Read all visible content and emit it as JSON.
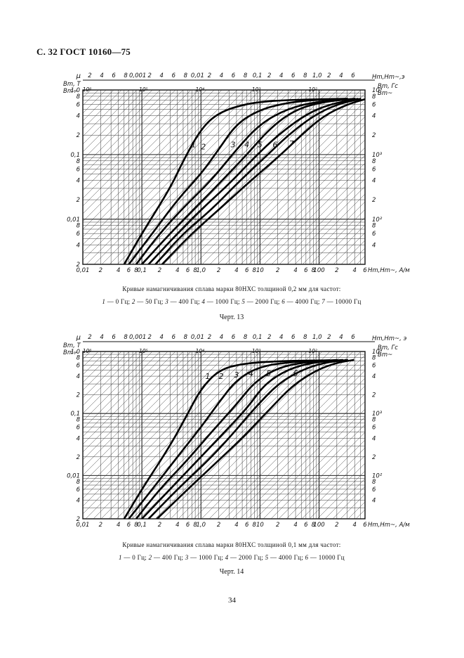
{
  "header": {
    "title": "С. 32 ГОСТ 10160—75"
  },
  "page_number": "34",
  "charts": [
    {
      "caption": "Кривые намагничивания сплава марки 80НХС толщиной 0,2 мм для частот:",
      "legend_items": [
        {
          "num": "1",
          "text": " — 0 Гц; "
        },
        {
          "num": "2",
          "text": " — 50 Гц; "
        },
        {
          "num": "3",
          "text": " — 400 Гц; "
        },
        {
          "num": "4",
          "text": " — 1000 Гц; "
        },
        {
          "num": "5",
          "text": " — 2000 Гц; "
        },
        {
          "num": "6",
          "text": " — 4000 Гц; "
        },
        {
          "num": "7",
          "text": " — 10000 Гц"
        }
      ],
      "label": "Черт. 13"
    },
    {
      "caption": "Кривые намагничивания сплава марки 80НХС толщиной 0,1 мм для частот:",
      "legend_items": [
        {
          "num": "1",
          "text": " — 0 Гц; "
        },
        {
          "num": "2",
          "text": " — 400 Гц; "
        },
        {
          "num": "3",
          "text": " — 1000 Гц; "
        },
        {
          "num": "4",
          "text": " — 2000 Гц; "
        },
        {
          "num": "5",
          "text": " — 4000 Гц; "
        },
        {
          "num": "6",
          "text": " — 10000 Гц"
        }
      ],
      "label": "Черт. 14"
    }
  ],
  "chart_data": [
    {
      "type": "line",
      "x_scale": "log",
      "y_scale": "log",
      "xlim": [
        0.01,
        600
      ],
      "ylim": [
        0.002,
        1.0
      ],
      "top_axis_label": "Hm,Hm~,э",
      "top_axis_marks": [
        "2",
        "4",
        "6",
        "8",
        "0,001",
        "2",
        "4",
        "6",
        "8",
        "0,01",
        "2",
        "4",
        "6",
        "8",
        "0,1",
        "2",
        "4",
        "6",
        "8",
        "1,0",
        "2",
        "4",
        "6"
      ],
      "bottom_axis_label": "Hm,Hm~, А/м",
      "x_ticks": [
        {
          "v": 0.01,
          "t": "0,01"
        },
        {
          "v": 0.02,
          "t": "2"
        },
        {
          "v": 0.04,
          "t": "4"
        },
        {
          "v": 0.06,
          "t": "6"
        },
        {
          "v": 0.08,
          "t": "8"
        },
        {
          "v": 0.1,
          "t": "0,1"
        },
        {
          "v": 0.2,
          "t": "2"
        },
        {
          "v": 0.4,
          "t": "4"
        },
        {
          "v": 0.6,
          "t": "6"
        },
        {
          "v": 0.8,
          "t": "8"
        },
        {
          "v": 1,
          "t": "1,0"
        },
        {
          "v": 2,
          "t": "2"
        },
        {
          "v": 4,
          "t": "4"
        },
        {
          "v": 6,
          "t": "6"
        },
        {
          "v": 8,
          "t": "8"
        },
        {
          "v": 10,
          "t": "10"
        },
        {
          "v": 20,
          "t": "2"
        },
        {
          "v": 40,
          "t": "4"
        },
        {
          "v": 60,
          "t": "6"
        },
        {
          "v": 80,
          "t": "8"
        },
        {
          "v": 100,
          "t": "100"
        },
        {
          "v": 200,
          "t": "2"
        },
        {
          "v": 400,
          "t": "4"
        },
        {
          "v": 600,
          "t": "6"
        }
      ],
      "left_axis_label": [
        "Bm, T",
        "Bm~"
      ],
      "y_ticks": [
        {
          "v": 1,
          "t": "1,0"
        },
        {
          "v": 0.8,
          "t": "8"
        },
        {
          "v": 0.6,
          "t": "6"
        },
        {
          "v": 0.4,
          "t": "4"
        },
        {
          "v": 0.2,
          "t": "2"
        },
        {
          "v": 0.1,
          "t": "0,1"
        },
        {
          "v": 0.08,
          "t": "8"
        },
        {
          "v": 0.06,
          "t": "6"
        },
        {
          "v": 0.04,
          "t": "4"
        },
        {
          "v": 0.02,
          "t": "2"
        },
        {
          "v": 0.01,
          "t": "0,01"
        },
        {
          "v": 0.008,
          "t": "8"
        },
        {
          "v": 0.006,
          "t": "6"
        },
        {
          "v": 0.004,
          "t": "4"
        },
        {
          "v": 0.002,
          "t": "2"
        }
      ],
      "right_axis_label": [
        "Bm, Гс",
        "Bm~"
      ],
      "right_ticks": [
        {
          "v": 1,
          "t": "10⁴"
        },
        {
          "v": 0.8,
          "t": "8"
        },
        {
          "v": 0.6,
          "t": "6"
        },
        {
          "v": 0.4,
          "t": "4"
        },
        {
          "v": 0.2,
          "t": "2"
        },
        {
          "v": 0.1,
          "t": "10³"
        },
        {
          "v": 0.08,
          "t": "8"
        },
        {
          "v": 0.06,
          "t": "6"
        },
        {
          "v": 0.04,
          "t": "4"
        },
        {
          "v": 0.02,
          "t": "2"
        },
        {
          "v": 0.01,
          "t": "10²"
        },
        {
          "v": 0.008,
          "t": "8"
        },
        {
          "v": 0.006,
          "t": "6"
        },
        {
          "v": 0.004,
          "t": "4"
        }
      ],
      "mu_label": "μ",
      "mu_values": [
        "10⁶",
        "10⁵",
        "10⁴",
        "10³",
        "10²"
      ],
      "series": [
        {
          "name": "1",
          "points": [
            [
              0.05,
              0.002
            ],
            [
              0.1,
              0.006
            ],
            [
              0.3,
              0.03
            ],
            [
              0.5,
              0.08
            ],
            [
              1,
              0.25
            ],
            [
              2,
              0.45
            ],
            [
              6,
              0.62
            ],
            [
              20,
              0.69
            ],
            [
              100,
              0.72
            ],
            [
              300,
              0.73
            ]
          ],
          "label_at": [
            0.75,
            0.13
          ]
        },
        {
          "name": "2",
          "points": [
            [
              0.06,
              0.002
            ],
            [
              0.15,
              0.006
            ],
            [
              0.4,
              0.02
            ],
            [
              1,
              0.05
            ],
            [
              2,
              0.12
            ],
            [
              4,
              0.3
            ],
            [
              10,
              0.5
            ],
            [
              30,
              0.64
            ],
            [
              100,
              0.71
            ],
            [
              300,
              0.73
            ]
          ],
          "label_at": [
            1.1,
            0.12
          ]
        },
        {
          "name": "3",
          "points": [
            [
              0.08,
              0.002
            ],
            [
              0.2,
              0.006
            ],
            [
              0.5,
              0.015
            ],
            [
              1.5,
              0.04
            ],
            [
              4,
              0.12
            ],
            [
              10,
              0.3
            ],
            [
              30,
              0.52
            ],
            [
              100,
              0.67
            ],
            [
              400,
              0.73
            ]
          ],
          "label_at": [
            3.5,
            0.13
          ]
        },
        {
          "name": "4",
          "points": [
            [
              0.1,
              0.002
            ],
            [
              0.3,
              0.006
            ],
            [
              0.8,
              0.015
            ],
            [
              2,
              0.035
            ],
            [
              6,
              0.1
            ],
            [
              15,
              0.26
            ],
            [
              40,
              0.5
            ],
            [
              120,
              0.66
            ],
            [
              400,
              0.73
            ]
          ],
          "label_at": [
            6,
            0.13
          ]
        },
        {
          "name": "5",
          "points": [
            [
              0.13,
              0.002
            ],
            [
              0.4,
              0.006
            ],
            [
              1,
              0.014
            ],
            [
              3,
              0.035
            ],
            [
              8,
              0.09
            ],
            [
              20,
              0.2
            ],
            [
              60,
              0.42
            ],
            [
              150,
              0.6
            ],
            [
              450,
              0.73
            ]
          ],
          "label_at": [
            10,
            0.13
          ]
        },
        {
          "name": "6",
          "points": [
            [
              0.17,
              0.002
            ],
            [
              0.5,
              0.006
            ],
            [
              1.5,
              0.014
            ],
            [
              4,
              0.035
            ],
            [
              12,
              0.09
            ],
            [
              30,
              0.2
            ],
            [
              80,
              0.4
            ],
            [
              200,
              0.6
            ],
            [
              500,
              0.73
            ]
          ],
          "label_at": [
            18,
            0.13
          ]
        },
        {
          "name": "7",
          "points": [
            [
              0.22,
              0.002
            ],
            [
              0.7,
              0.006
            ],
            [
              2,
              0.014
            ],
            [
              6,
              0.035
            ],
            [
              20,
              0.09
            ],
            [
              50,
              0.2
            ],
            [
              120,
              0.4
            ],
            [
              300,
              0.6
            ],
            [
              600,
              0.72
            ]
          ],
          "label_at": [
            34,
            0.135
          ]
        }
      ]
    },
    {
      "type": "line",
      "x_scale": "log",
      "y_scale": "log",
      "xlim": [
        0.01,
        600
      ],
      "ylim": [
        0.002,
        1.0
      ],
      "top_axis_label": "Hm,Hm~, э",
      "top_axis_marks": [
        "2",
        "4",
        "6",
        "8",
        "0,001",
        "2",
        "4",
        "6",
        "8",
        "0,01",
        "2",
        "4",
        "6",
        "8",
        "0,1",
        "2",
        "4",
        "6",
        "8",
        "1,0",
        "2",
        "4",
        "6"
      ],
      "bottom_axis_label": "Hm,Hm~, А/м",
      "x_ticks": [
        {
          "v": 0.01,
          "t": "0,01"
        },
        {
          "v": 0.02,
          "t": "2"
        },
        {
          "v": 0.04,
          "t": "4"
        },
        {
          "v": 0.06,
          "t": "6"
        },
        {
          "v": 0.08,
          "t": "8"
        },
        {
          "v": 0.1,
          "t": "0,1"
        },
        {
          "v": 0.2,
          "t": "2"
        },
        {
          "v": 0.4,
          "t": "4"
        },
        {
          "v": 0.6,
          "t": "6"
        },
        {
          "v": 0.8,
          "t": "8"
        },
        {
          "v": 1,
          "t": "1,0"
        },
        {
          "v": 2,
          "t": "2"
        },
        {
          "v": 4,
          "t": "4"
        },
        {
          "v": 6,
          "t": "6"
        },
        {
          "v": 8,
          "t": "8"
        },
        {
          "v": 10,
          "t": "10"
        },
        {
          "v": 20,
          "t": "2"
        },
        {
          "v": 40,
          "t": "4"
        },
        {
          "v": 60,
          "t": "6"
        },
        {
          "v": 80,
          "t": "8"
        },
        {
          "v": 100,
          "t": "100"
        },
        {
          "v": 200,
          "t": "2"
        },
        {
          "v": 400,
          "t": "4"
        },
        {
          "v": 600,
          "t": "6"
        }
      ],
      "left_axis_label": [
        "Bm, T",
        "Bm~"
      ],
      "y_ticks": [
        {
          "v": 1,
          "t": "1,0"
        },
        {
          "v": 0.8,
          "t": "8"
        },
        {
          "v": 0.6,
          "t": "6"
        },
        {
          "v": 0.4,
          "t": "4"
        },
        {
          "v": 0.2,
          "t": "2"
        },
        {
          "v": 0.1,
          "t": "0,1"
        },
        {
          "v": 0.08,
          "t": "8"
        },
        {
          "v": 0.06,
          "t": "6"
        },
        {
          "v": 0.04,
          "t": "4"
        },
        {
          "v": 0.02,
          "t": "2"
        },
        {
          "v": 0.01,
          "t": "0,01"
        },
        {
          "v": 0.008,
          "t": "8"
        },
        {
          "v": 0.006,
          "t": "6"
        },
        {
          "v": 0.004,
          "t": "4"
        },
        {
          "v": 0.002,
          "t": "2"
        }
      ],
      "right_axis_label": [
        "Bm, Гс",
        "Bm~"
      ],
      "right_ticks": [
        {
          "v": 1,
          "t": "10⁴"
        },
        {
          "v": 0.8,
          "t": "8"
        },
        {
          "v": 0.6,
          "t": "6"
        },
        {
          "v": 0.4,
          "t": "4"
        },
        {
          "v": 0.2,
          "t": "2"
        },
        {
          "v": 0.1,
          "t": "10³"
        },
        {
          "v": 0.08,
          "t": "8"
        },
        {
          "v": 0.06,
          "t": "6"
        },
        {
          "v": 0.04,
          "t": "4"
        },
        {
          "v": 0.02,
          "t": "2"
        },
        {
          "v": 0.01,
          "t": "10²"
        },
        {
          "v": 0.008,
          "t": "8"
        },
        {
          "v": 0.006,
          "t": "6"
        },
        {
          "v": 0.004,
          "t": "4"
        }
      ],
      "mu_label": "μ",
      "mu_values": [
        "10⁶",
        "10⁵",
        "10⁴",
        "10³",
        "10²"
      ],
      "series": [
        {
          "name": "1",
          "points": [
            [
              0.05,
              0.002
            ],
            [
              0.1,
              0.006
            ],
            [
              0.3,
              0.03
            ],
            [
              0.6,
              0.1
            ],
            [
              1,
              0.25
            ],
            [
              2,
              0.5
            ],
            [
              5,
              0.64
            ],
            [
              20,
              0.7
            ],
            [
              150,
              0.72
            ]
          ],
          "label_at": [
            1.3,
            0.36
          ]
        },
        {
          "name": "2",
          "points": [
            [
              0.06,
              0.002
            ],
            [
              0.15,
              0.006
            ],
            [
              0.4,
              0.02
            ],
            [
              1,
              0.06
            ],
            [
              2,
              0.15
            ],
            [
              4,
              0.35
            ],
            [
              10,
              0.58
            ],
            [
              40,
              0.69
            ],
            [
              150,
              0.72
            ]
          ],
          "label_at": [
            2.2,
            0.36
          ]
        },
        {
          "name": "3",
          "points": [
            [
              0.08,
              0.002
            ],
            [
              0.2,
              0.006
            ],
            [
              0.6,
              0.018
            ],
            [
              1.5,
              0.05
            ],
            [
              4,
              0.14
            ],
            [
              8,
              0.32
            ],
            [
              20,
              0.55
            ],
            [
              60,
              0.68
            ],
            [
              200,
              0.73
            ]
          ],
          "label_at": [
            4,
            0.38
          ]
        },
        {
          "name": "4",
          "points": [
            [
              0.1,
              0.002
            ],
            [
              0.3,
              0.006
            ],
            [
              0.8,
              0.016
            ],
            [
              2,
              0.04
            ],
            [
              6,
              0.12
            ],
            [
              12,
              0.3
            ],
            [
              30,
              0.52
            ],
            [
              80,
              0.67
            ],
            [
              250,
              0.73
            ]
          ],
          "label_at": [
            7,
            0.4
          ]
        },
        {
          "name": "5",
          "points": [
            [
              0.13,
              0.002
            ],
            [
              0.4,
              0.006
            ],
            [
              1.2,
              0.016
            ],
            [
              3,
              0.04
            ],
            [
              8,
              0.12
            ],
            [
              20,
              0.3
            ],
            [
              50,
              0.5
            ],
            [
              120,
              0.66
            ],
            [
              300,
              0.73
            ]
          ],
          "label_at": [
            14,
            0.4
          ]
        },
        {
          "name": "6",
          "points": [
            [
              0.18,
              0.002
            ],
            [
              0.6,
              0.006
            ],
            [
              1.8,
              0.016
            ],
            [
              5,
              0.04
            ],
            [
              15,
              0.12
            ],
            [
              35,
              0.28
            ],
            [
              90,
              0.5
            ],
            [
              200,
              0.66
            ],
            [
              380,
              0.73
            ]
          ],
          "label_at": [
            40,
            0.4
          ]
        }
      ]
    }
  ]
}
